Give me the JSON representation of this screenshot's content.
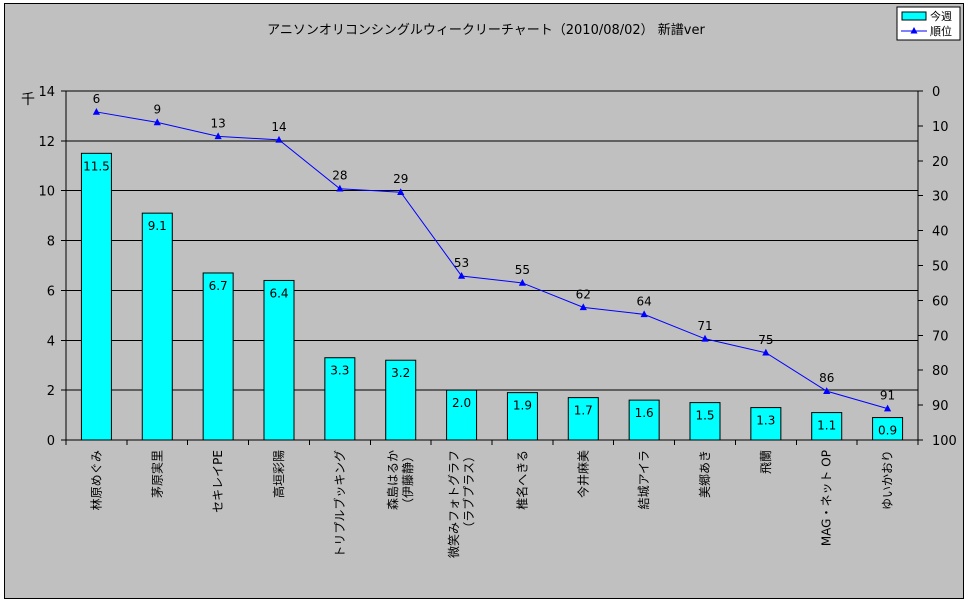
{
  "chart_data": {
    "type": "bar+line",
    "title": "アニソンオリコンシングルウィークリーチャート（2010/08/02） 新譜ver",
    "ylabel": "千",
    "ylim": [
      0,
      14
    ],
    "yticks": [
      "0",
      "2",
      "4",
      "6",
      "8",
      "10",
      "12",
      "14"
    ],
    "y2lim": [
      0,
      100
    ],
    "y2ticks": [
      "0",
      "10",
      "20",
      "30",
      "40",
      "50",
      "60",
      "70",
      "80",
      "90",
      "100"
    ],
    "grid": true,
    "legend_position": "top-right",
    "categories": [
      "林原めぐみ",
      "茅原実里",
      "セキレイPE",
      "高垣彩陽",
      "トリプルブッキング",
      "森島はるか（伊藤静）",
      "微笑みフォトグラフ（ラブプラス）",
      "椎名へきる",
      "今井麻美",
      "結城アイラ",
      "美郷あき",
      "飛蘭",
      "MAG・ネット OP",
      "ゆいかおり"
    ],
    "series": [
      {
        "name": "今週",
        "kind": "bar",
        "color": "#00ffff",
        "values": [
          11.5,
          9.1,
          6.7,
          6.4,
          3.3,
          3.2,
          2.0,
          1.9,
          1.7,
          1.6,
          1.5,
          1.3,
          1.1,
          0.9
        ],
        "labels": [
          "11.5",
          "9.1",
          "6.7",
          "6.4",
          "3.3",
          "3.2",
          "2.0",
          "1.9",
          "1.7",
          "1.6",
          "1.5",
          "1.3",
          "1.1",
          "0.9"
        ]
      },
      {
        "name": "順位",
        "kind": "line",
        "axis": "secondary",
        "color": "#0000ff",
        "values": [
          6,
          9,
          13,
          14,
          28,
          29,
          53,
          55,
          62,
          64,
          71,
          75,
          86,
          91
        ],
        "labels": [
          "6",
          "9",
          "13",
          "14",
          "28",
          "29",
          "53",
          "55",
          "62",
          "64",
          "71",
          "75",
          "86",
          "91"
        ]
      }
    ]
  }
}
